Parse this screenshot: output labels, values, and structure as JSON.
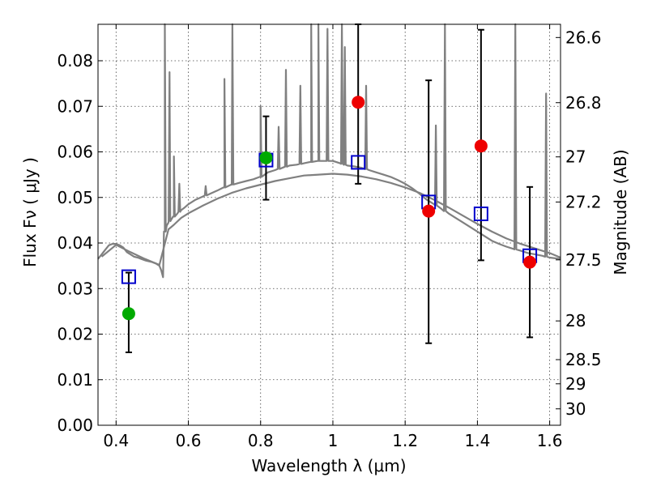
{
  "chart_data": {
    "type": "scatter",
    "title": "",
    "xlabel": "Wavelength  λ (μm)",
    "ylabel": "Flux  Fν  ( μJy )",
    "y2label": "Magnitude (AB)",
    "xlim": [
      0.35,
      1.63
    ],
    "ylim": [
      0.0,
      0.088
    ],
    "grid": true,
    "x_ticks": [
      {
        "value": 0.4,
        "label": "0.4"
      },
      {
        "value": 0.6,
        "label": "0.6"
      },
      {
        "value": 0.8,
        "label": "0.8"
      },
      {
        "value": 1.0,
        "label": "1"
      },
      {
        "value": 1.2,
        "label": "1.2"
      },
      {
        "value": 1.4,
        "label": "1.4"
      },
      {
        "value": 1.6,
        "label": "1.6"
      }
    ],
    "y_ticks": [
      {
        "value": 0.0,
        "label": "0.00"
      },
      {
        "value": 0.01,
        "label": "0.01"
      },
      {
        "value": 0.02,
        "label": "0.02"
      },
      {
        "value": 0.03,
        "label": "0.03"
      },
      {
        "value": 0.04,
        "label": "0.04"
      },
      {
        "value": 0.05,
        "label": "0.05"
      },
      {
        "value": 0.06,
        "label": "0.06"
      },
      {
        "value": 0.07,
        "label": "0.07"
      },
      {
        "value": 0.08,
        "label": "0.08"
      }
    ],
    "y2_ticks": [
      {
        "flux": 0.0851,
        "label": "26.6"
      },
      {
        "flux": 0.0708,
        "label": "26.8"
      },
      {
        "flux": 0.0589,
        "label": "27"
      },
      {
        "flux": 0.049,
        "label": "27.2"
      },
      {
        "flux": 0.0363,
        "label": "27.5"
      },
      {
        "flux": 0.0229,
        "label": "28"
      },
      {
        "flux": 0.0144,
        "label": "28.5"
      },
      {
        "flux": 0.0091,
        "label": "29"
      },
      {
        "flux": 0.0036,
        "label": "30"
      }
    ],
    "series": [
      {
        "kind": "line",
        "color": "#808080",
        "x": [
          0.35,
          0.36,
          0.37,
          0.38,
          0.39,
          0.4,
          0.41,
          0.42,
          0.43,
          0.44,
          0.45,
          0.46,
          0.47,
          0.48,
          0.49,
          0.5,
          0.51,
          0.52,
          0.525,
          0.53,
          0.535,
          0.54,
          0.545,
          0.55,
          0.56,
          0.57,
          0.58,
          0.59,
          0.6,
          0.62,
          0.64,
          0.66,
          0.68,
          0.7,
          0.72,
          0.74,
          0.76,
          0.78,
          0.8,
          0.82,
          0.84,
          0.86,
          0.88,
          0.9,
          0.92,
          0.94,
          0.96,
          0.98,
          1.0,
          1.02,
          1.04,
          1.06,
          1.08,
          1.1,
          1.12,
          1.14,
          1.16,
          1.18,
          1.2,
          1.22,
          1.24,
          1.26,
          1.28,
          1.3,
          1.32,
          1.34,
          1.36,
          1.38,
          1.4,
          1.42,
          1.44,
          1.46,
          1.48,
          1.5,
          1.52,
          1.54,
          1.56,
          1.58,
          1.6,
          1.63
        ],
        "y": [
          0.0365,
          0.0375,
          0.0385,
          0.0395,
          0.0398,
          0.0398,
          0.0395,
          0.039,
          0.038,
          0.0375,
          0.037,
          0.0368,
          0.0365,
          0.0362,
          0.036,
          0.0358,
          0.0355,
          0.035,
          0.034,
          0.0325,
          0.0425,
          0.0438,
          0.0445,
          0.045,
          0.0458,
          0.0465,
          0.0472,
          0.0478,
          0.0485,
          0.0495,
          0.0502,
          0.0508,
          0.0515,
          0.0522,
          0.0528,
          0.0532,
          0.0536,
          0.054,
          0.0545,
          0.0555,
          0.056,
          0.0565,
          0.057,
          0.0572,
          0.0575,
          0.0578,
          0.058,
          0.058,
          0.058,
          0.0575,
          0.057,
          0.0568,
          0.0565,
          0.056,
          0.0555,
          0.055,
          0.0545,
          0.0538,
          0.053,
          0.052,
          0.0508,
          0.0495,
          0.0485,
          0.0475,
          0.0465,
          0.0455,
          0.0445,
          0.0435,
          0.0425,
          0.0415,
          0.0405,
          0.0398,
          0.0392,
          0.0387,
          0.0383,
          0.0378,
          0.0375,
          0.0372,
          0.0368,
          0.0365
        ]
      },
      {
        "kind": "line",
        "color": "#808080",
        "x": [
          0.36,
          0.4,
          0.44,
          0.48,
          0.52,
          0.545,
          0.56,
          0.58,
          0.6,
          0.64,
          0.68,
          0.72,
          0.76,
          0.8,
          0.84,
          0.88,
          0.92,
          0.96,
          1.0,
          1.04,
          1.08,
          1.12,
          1.16,
          1.2,
          1.24,
          1.28,
          1.32,
          1.36,
          1.4,
          1.44,
          1.48,
          1.52,
          1.56,
          1.6,
          1.63
        ],
        "y": [
          0.037,
          0.0396,
          0.038,
          0.0365,
          0.0352,
          0.043,
          0.044,
          0.0455,
          0.0465,
          0.0482,
          0.0497,
          0.051,
          0.052,
          0.0528,
          0.0536,
          0.0542,
          0.0548,
          0.055,
          0.0552,
          0.055,
          0.0546,
          0.054,
          0.0532,
          0.0522,
          0.051,
          0.0495,
          0.0478,
          0.046,
          0.0442,
          0.0425,
          0.041,
          0.0398,
          0.0388,
          0.0378,
          0.0368
        ]
      },
      {
        "kind": "markers",
        "marker": "square",
        "color": "#0000cc",
        "x": [
          0.435,
          0.815,
          1.07,
          1.265,
          1.41,
          1.545
        ],
        "y": [
          0.0326,
          0.0582,
          0.0577,
          0.049,
          0.0464,
          0.0372
        ]
      },
      {
        "kind": "markers",
        "marker": "circle",
        "color": "#00aa00",
        "x": [
          0.435,
          0.815
        ],
        "y": [
          0.0245,
          0.0587
        ],
        "yerr_low": [
          0.016,
          0.0495
        ],
        "yerr_high": [
          0.0335,
          0.0678
        ]
      },
      {
        "kind": "markers",
        "marker": "circle",
        "color": "#ee0000",
        "x": [
          1.07,
          1.265,
          1.41,
          1.545
        ],
        "y": [
          0.0709,
          0.047,
          0.0613,
          0.0358
        ],
        "yerr_low": [
          0.053,
          0.018,
          0.0362,
          0.0193
        ],
        "yerr_high": [
          0.088,
          0.0757,
          0.0868,
          0.0523
        ]
      }
    ],
    "emission_lines": [
      {
        "x": 0.535,
        "peak": 0.088
      },
      {
        "x": 0.548,
        "peak": 0.0775
      },
      {
        "x": 0.56,
        "peak": 0.059
      },
      {
        "x": 0.575,
        "peak": 0.053
      },
      {
        "x": 0.648,
        "peak": 0.0525
      },
      {
        "x": 0.7,
        "peak": 0.076
      },
      {
        "x": 0.722,
        "peak": 0.088
      },
      {
        "x": 0.8,
        "peak": 0.07
      },
      {
        "x": 0.85,
        "peak": 0.0655
      },
      {
        "x": 0.87,
        "peak": 0.078
      },
      {
        "x": 0.91,
        "peak": 0.0745
      },
      {
        "x": 0.94,
        "peak": 0.088
      },
      {
        "x": 0.96,
        "peak": 0.088
      },
      {
        "x": 0.985,
        "peak": 0.087
      },
      {
        "x": 1.025,
        "peak": 0.0885
      },
      {
        "x": 1.033,
        "peak": 0.083
      },
      {
        "x": 1.092,
        "peak": 0.0745
      },
      {
        "x": 1.285,
        "peak": 0.0658
      },
      {
        "x": 1.31,
        "peak": 0.088
      },
      {
        "x": 1.505,
        "peak": 0.088
      },
      {
        "x": 1.59,
        "peak": 0.0728
      }
    ]
  }
}
